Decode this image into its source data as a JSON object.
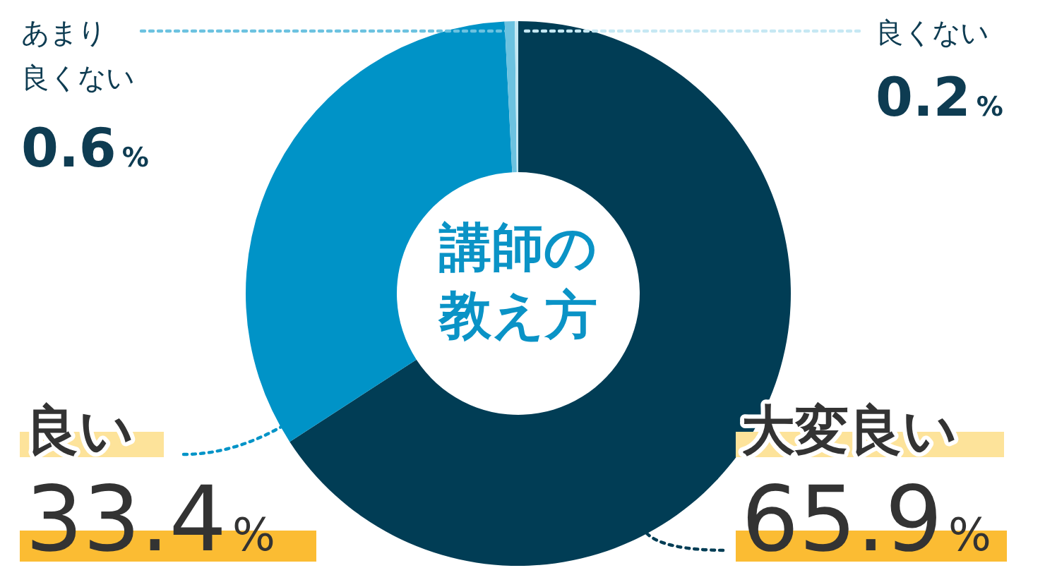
{
  "chart_data": {
    "type": "donut",
    "title": "講師の教え方",
    "categories": [
      "大変良い",
      "良い",
      "あまり良くない",
      "良くない"
    ],
    "values": [
      65.9,
      33.4,
      0.6,
      0.2
    ],
    "colors": [
      "#013d55",
      "#0093c7",
      "#6cc2e0",
      "#c6e8f3"
    ],
    "value_labels": [
      "65.9%",
      "33.4%",
      "0.6%",
      "0.2%"
    ]
  }
}
